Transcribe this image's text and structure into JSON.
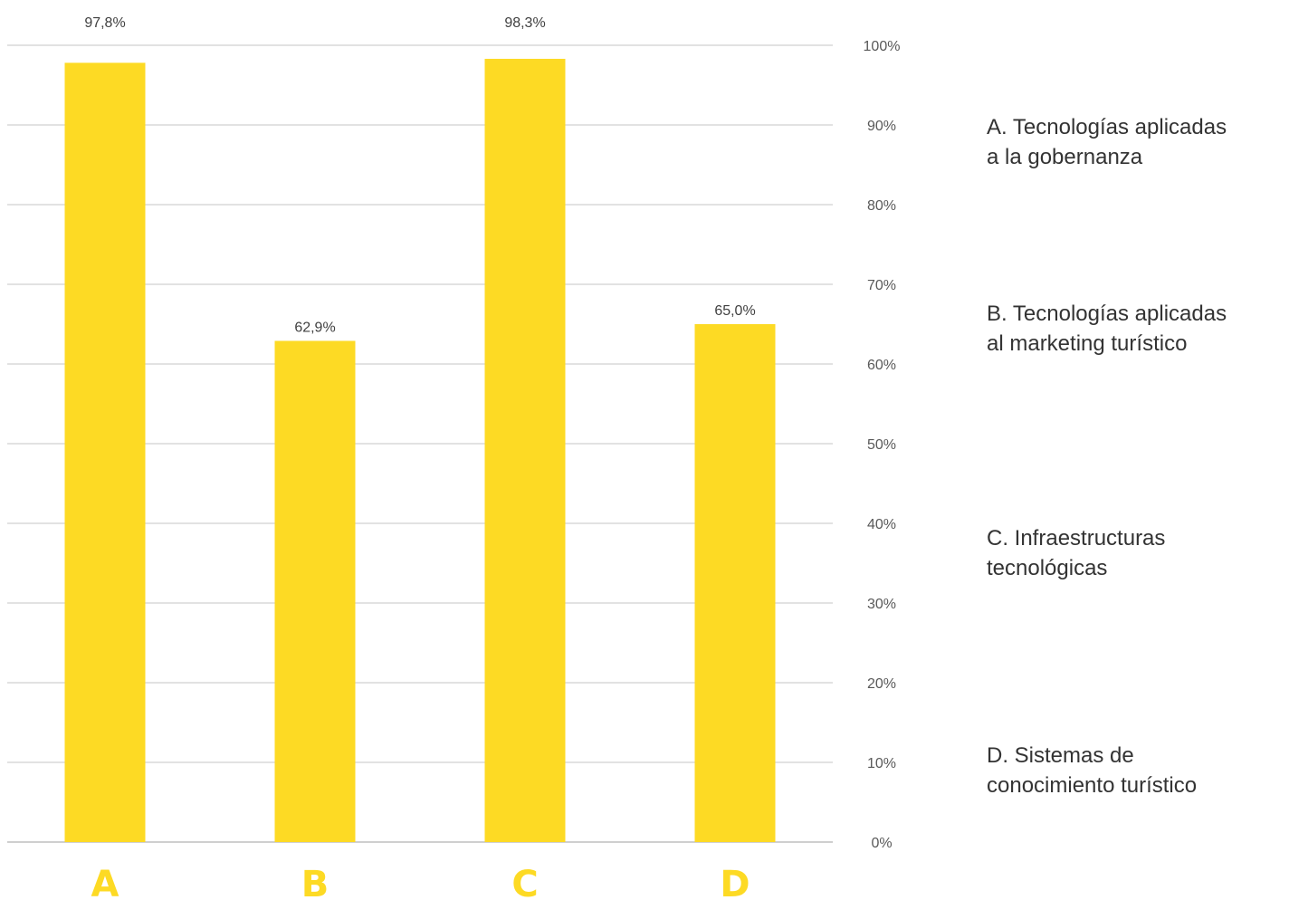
{
  "chart_data": {
    "type": "bar",
    "categories": [
      "A",
      "B",
      "C",
      "D"
    ],
    "values": [
      97.8,
      62.9,
      98.3,
      65.0
    ],
    "data_labels": [
      "97,8%",
      "62,9%",
      "98,3%",
      "65,0%"
    ],
    "ylim": [
      0,
      100
    ],
    "y_ticks": [
      0,
      10,
      20,
      30,
      40,
      50,
      60,
      70,
      80,
      90,
      100
    ],
    "y_tick_labels": [
      "0%",
      "10%",
      "20%",
      "30%",
      "40%",
      "50%",
      "60%",
      "70%",
      "80%",
      "90%",
      "100%"
    ],
    "y_axis_position": "right",
    "grid": true,
    "title": "",
    "xlabel": "",
    "ylabel": "",
    "bar_color": "#FDDA24",
    "category_label_color": "#FDDA24",
    "legend_placement": "right",
    "legend": [
      {
        "lines": [
          "A. Tecnologías aplicadas",
          "a la gobernanza"
        ]
      },
      {
        "lines": [
          "B. Tecnologías aplicadas",
          "al marketing turístico"
        ]
      },
      {
        "lines": [
          "C. Infraestructuras",
          "tecnológicas"
        ]
      },
      {
        "lines": [
          "D. Sistemas de",
          "conocimiento turístico"
        ]
      }
    ]
  }
}
